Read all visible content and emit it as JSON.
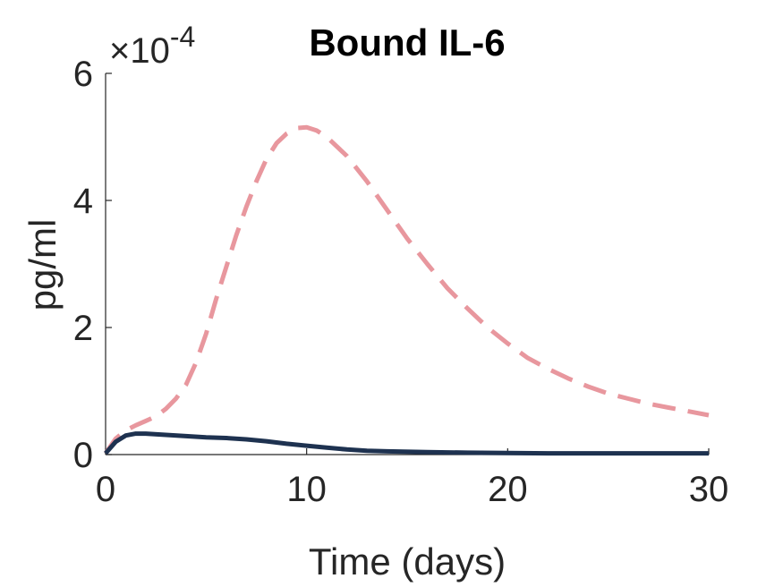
{
  "chart_data": {
    "type": "line",
    "title": "Bound IL-6",
    "xlabel": "Time (days)",
    "ylabel": "pg/ml",
    "y_exponent_label": "×10",
    "y_exponent_power": "-4",
    "xlim": [
      0,
      30
    ],
    "ylim": [
      0,
      6
    ],
    "y_scale_factor": 0.0001,
    "grid": false,
    "x_ticks": [
      0,
      10,
      20,
      30
    ],
    "y_ticks": [
      0,
      2,
      4,
      6
    ],
    "x_tick_labels": [
      "0",
      "10",
      "20",
      "30"
    ],
    "y_tick_labels": [
      "0",
      "2",
      "4",
      "6"
    ],
    "series": [
      {
        "style": "dashed",
        "color": "#e8979e",
        "x": [
          0,
          0.5,
          1,
          1.5,
          2,
          2.5,
          3,
          3.5,
          4,
          4.5,
          5,
          5.5,
          6,
          6.5,
          7,
          7.5,
          8,
          8.5,
          9,
          9.5,
          10,
          10.5,
          11,
          12,
          13,
          14,
          15,
          16,
          17,
          18,
          19,
          20,
          21,
          22,
          23,
          24,
          25,
          26,
          27,
          28,
          29,
          30
        ],
        "values": [
          0.02,
          0.25,
          0.38,
          0.46,
          0.53,
          0.6,
          0.72,
          0.88,
          1.1,
          1.45,
          1.9,
          2.45,
          2.95,
          3.45,
          3.9,
          4.3,
          4.65,
          4.9,
          5.05,
          5.14,
          5.15,
          5.1,
          5.0,
          4.7,
          4.3,
          3.85,
          3.4,
          3.0,
          2.62,
          2.3,
          2.0,
          1.75,
          1.52,
          1.35,
          1.2,
          1.07,
          0.96,
          0.88,
          0.8,
          0.74,
          0.68,
          0.62
        ]
      },
      {
        "style": "solid",
        "color": "#1e3250",
        "x": [
          0,
          0.5,
          1,
          1.5,
          2,
          3,
          4,
          5,
          6,
          7,
          8,
          9,
          10,
          11,
          12,
          13,
          14,
          16,
          18,
          20,
          22,
          24,
          26,
          28,
          30
        ],
        "values": [
          0.02,
          0.2,
          0.3,
          0.33,
          0.33,
          0.31,
          0.29,
          0.27,
          0.26,
          0.24,
          0.21,
          0.17,
          0.14,
          0.11,
          0.08,
          0.06,
          0.05,
          0.04,
          0.03,
          0.025,
          0.02,
          0.02,
          0.02,
          0.02,
          0.02
        ]
      }
    ]
  }
}
